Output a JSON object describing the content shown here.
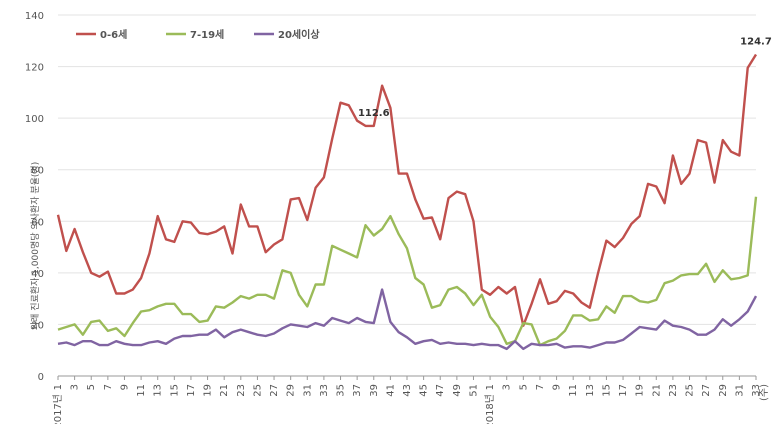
{
  "chart_data": {
    "type": "line",
    "ylabel": "외래 진료환자 1,000명당 의사환자 분율(명)",
    "ylim": [
      0,
      140
    ],
    "yticks": [
      0,
      20,
      40,
      60,
      80,
      100,
      120,
      140
    ],
    "grid": "horizontal",
    "legend_position": "top-left",
    "x_tick_labels": [
      "1",
      "3",
      "5",
      "7",
      "9",
      "11",
      "13",
      "15",
      "17",
      "19",
      "21",
      "23",
      "25",
      "27",
      "29",
      "31",
      "33",
      "35",
      "37",
      "39",
      "41",
      "43",
      "45",
      "47",
      "49",
      "51",
      "1",
      "3",
      "5",
      "7",
      "9",
      "11",
      "13",
      "15",
      "17",
      "19",
      "21",
      "23",
      "25",
      "27",
      "29",
      "31",
      "33"
    ],
    "year_labels": [
      {
        "label": "2017년",
        "week_index": 0
      },
      {
        "label": "2018년",
        "week_index": 52
      }
    ],
    "x_unit": "(주)",
    "annotations": [
      {
        "text": "112.6",
        "series": 0,
        "week_index": 38
      },
      {
        "text": "124.7",
        "series": 0,
        "week_index": 84
      }
    ],
    "series": [
      {
        "name": "0-6세",
        "color": "#c0504d",
        "values": [
          62.5,
          48.5,
          57,
          48,
          40,
          38.5,
          40.5,
          32,
          32,
          33.5,
          38,
          47.5,
          62,
          53,
          52,
          60,
          59.5,
          55.5,
          55,
          56,
          58,
          47.5,
          66.5,
          58,
          58,
          48,
          51,
          53,
          68.5,
          69,
          60.5,
          73,
          77,
          92,
          106,
          105,
          99,
          97,
          97,
          112.6,
          104,
          78.5,
          78.5,
          68.5,
          61,
          61.5,
          53,
          69,
          71.5,
          70.5,
          60,
          33.5,
          31.5,
          34.5,
          32,
          34.5,
          19.5,
          28,
          37.5,
          28,
          29,
          33,
          32,
          28.5,
          26.5,
          40,
          52.5,
          50,
          53.5,
          59,
          62,
          74.5,
          73.5,
          67,
          85.5,
          74.5,
          78.5,
          91.5,
          90.5,
          75,
          91.5,
          87,
          85.5,
          119.5,
          124.7
        ]
      },
      {
        "name": "7-19세",
        "color": "#9bbb59",
        "values": [
          18,
          19,
          20,
          16,
          21,
          21.5,
          17.5,
          18.5,
          15.5,
          20.5,
          25,
          25.5,
          27,
          28,
          28,
          24,
          24,
          21,
          21.5,
          27,
          26.5,
          28.5,
          31,
          30,
          31.5,
          31.5,
          30,
          41,
          40,
          31.5,
          27,
          35.5,
          35.5,
          50.5,
          49,
          47.5,
          46,
          58.5,
          54.5,
          57,
          62,
          55,
          49.5,
          38,
          35.5,
          26.5,
          27.5,
          33.5,
          34.5,
          32,
          27.5,
          31.5,
          23,
          19,
          12.5,
          13.5,
          20.5,
          20,
          12,
          13.5,
          14.5,
          17.5,
          23.5,
          23.5,
          21.5,
          22,
          27,
          24.5,
          31,
          31,
          29,
          28.5,
          29.5,
          36,
          37,
          39,
          39.5,
          39.5,
          43.5,
          36.5,
          41,
          37.5,
          38,
          39,
          69.5
        ]
      },
      {
        "name": "20세이상",
        "color": "#8064a2",
        "values": [
          12.5,
          13,
          12,
          13.5,
          13.5,
          12,
          12,
          13.5,
          12.5,
          12,
          12,
          13,
          13.5,
          12.5,
          14.5,
          15.5,
          15.5,
          16,
          16,
          18,
          15,
          17,
          18,
          17,
          16,
          15.5,
          16.5,
          18.5,
          20,
          19.5,
          19,
          20.5,
          19.5,
          22.5,
          21.5,
          20.5,
          22.5,
          21,
          20.5,
          33.5,
          21,
          17,
          15,
          12.5,
          13.5,
          14,
          12.5,
          13,
          12.5,
          12.5,
          12,
          12.5,
          12,
          12,
          10.5,
          13.5,
          10.5,
          12.5,
          12,
          12,
          12.5,
          11,
          11.5,
          11.5,
          11,
          12,
          13,
          13,
          14,
          16.5,
          19,
          18.5,
          18,
          21.5,
          19.5,
          19,
          18,
          16,
          16,
          18,
          22,
          19.5,
          22,
          25,
          31
        ]
      }
    ]
  }
}
